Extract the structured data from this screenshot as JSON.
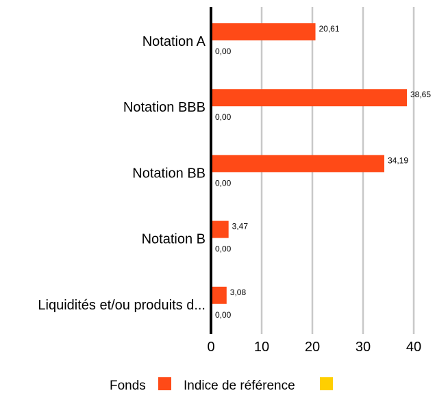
{
  "chart_data": {
    "type": "bar",
    "orientation": "horizontal",
    "categories": [
      "Notation A",
      "Notation BBB",
      "Notation BB",
      "Notation B",
      "Liquidités et/ou produits d..."
    ],
    "series": [
      {
        "name": "Fonds",
        "color": "#ff4a17",
        "values": [
          20.61,
          38.65,
          34.19,
          3.47,
          3.08
        ],
        "labels": [
          "20,61",
          "38,65",
          "34,19",
          "3,47",
          "3,08"
        ]
      },
      {
        "name": "Indice de référence",
        "color": "#ffcf00",
        "values": [
          0.0,
          0.0,
          0.0,
          0.0,
          0.0
        ],
        "labels": [
          "0,00",
          "0,00",
          "0,00",
          "0,00",
          "0,00"
        ]
      }
    ],
    "xlim": [
      0,
      40
    ],
    "xticks": [
      0,
      10,
      20,
      30,
      40
    ],
    "xtick_labels": [
      "0",
      "10",
      "20",
      "30",
      "40"
    ],
    "grid": true,
    "legend_position": "bottom"
  }
}
